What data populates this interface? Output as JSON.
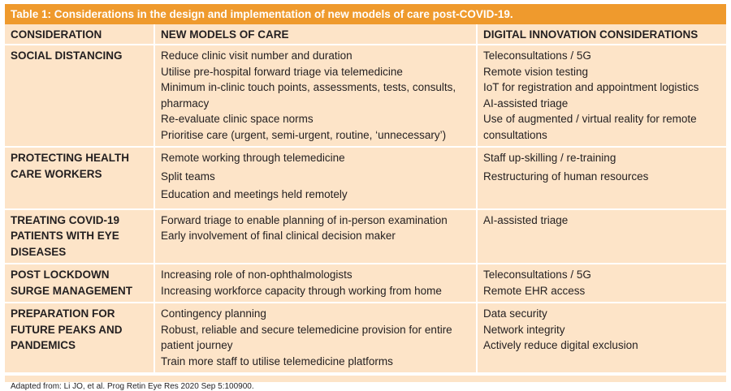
{
  "table": {
    "title": "Table 1: Considerations in the design and implementation of new models of care post-COVID-19.",
    "header": [
      "CONSIDERATION",
      "NEW MODELS OF CARE",
      "DIGITAL INNOVATION CONSIDERATIONS"
    ],
    "rows": [
      {
        "consideration": "SOCIAL DISTANCING",
        "models": [
          "Reduce clinic visit number and duration",
          "Utilise pre-hospital forward triage via telemedicine",
          "Minimum in-clinic touch points, assessments, tests, consults, pharmacy",
          "Re-evaluate clinic space norms",
          "Prioritise care (urgent, semi-urgent, routine, ‘unnecessary’)"
        ],
        "digital": [
          "Teleconsultations / 5G",
          "Remote vision testing",
          "IoT for registration and appointment logistics",
          "AI-assisted triage",
          "Use of augmented / virtual reality for remote consultations"
        ]
      },
      {
        "consideration": "PROTECTING HEALTH CARE WORKERS",
        "models": [
          "Remote working through telemedicine",
          "Split teams",
          "Education and meetings held remotely"
        ],
        "digital": [
          "Staff up-skilling / re-training",
          "Restructuring of human resources"
        ]
      },
      {
        "consideration": "TREATING COVID-19 PATIENTS WITH EYE DISEASES",
        "models": [
          "Forward triage to enable planning of in-person examination",
          "Early involvement of final clinical decision maker"
        ],
        "digital": [
          "AI-assisted triage"
        ]
      },
      {
        "consideration": "POST LOCKDOWN SURGE MANAGEMENT",
        "models": [
          "Increasing role of non-ophthalmologists",
          "Increasing workforce capacity through working from home"
        ],
        "digital": [
          "Teleconsultations / 5G",
          "Remote EHR access"
        ]
      },
      {
        "consideration": "PREPARATION FOR FUTURE PEAKS AND PANDEMICS",
        "models": [
          "Contingency planning",
          "Robust, reliable and secure telemedicine provision for entire patient journey",
          "Train more staff to utilise telemedicine platforms"
        ],
        "digital": [
          "Data security",
          "Network integrity",
          "Actively reduce digital exclusion"
        ]
      }
    ],
    "footnote": "Adapted from: Li JO, et al. Prog Retin Eye Res 2020 Sep 5:100900."
  }
}
